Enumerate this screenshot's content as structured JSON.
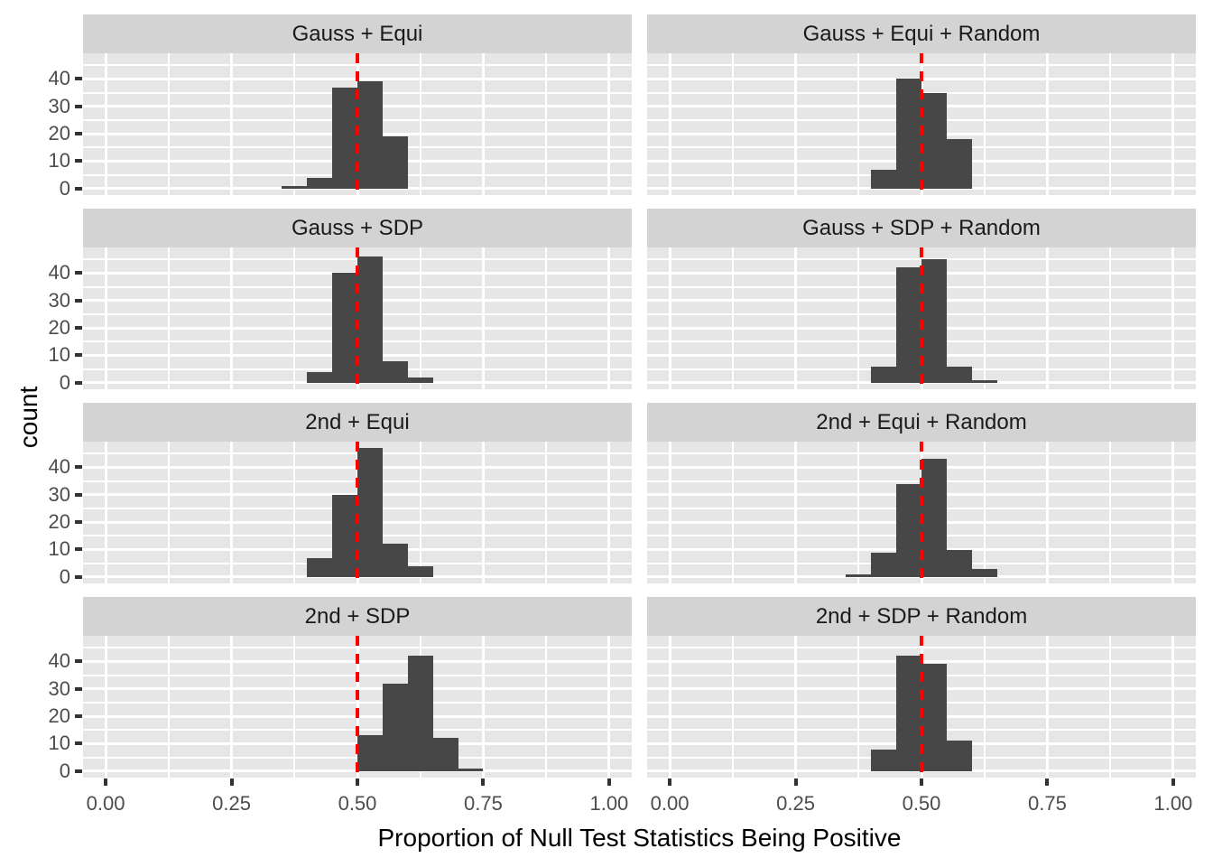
{
  "chart_data": {
    "type": "histogram",
    "facets": {
      "rows": 4,
      "cols": 2
    },
    "title": "",
    "xlabel": "Proportion of Null Test Statistics Being Positive",
    "ylabel": "count",
    "x_ticks": {
      "labels": [
        "0.00",
        "0.25",
        "0.50",
        "0.75",
        "1.00"
      ],
      "values": [
        0,
        0.25,
        0.5,
        0.75,
        1.0
      ]
    },
    "y_ticks": {
      "labels": [
        "0",
        "10",
        "20",
        "30",
        "40"
      ],
      "values": [
        0,
        10,
        20,
        30,
        40
      ]
    },
    "x_minor_ticks": [
      0.125,
      0.375,
      0.625,
      0.875
    ],
    "y_minor_ticks": [
      5,
      15,
      25,
      35,
      45
    ],
    "xlim": [
      -0.045,
      1.045
    ],
    "ylim": [
      -2.35,
      49.35
    ],
    "bin_width": 0.05,
    "reference_line_x": 0.5,
    "panels": [
      {
        "title": "Gauss + Equi",
        "bins": [
          {
            "x": 0.35,
            "count": 1
          },
          {
            "x": 0.4,
            "count": 4
          },
          {
            "x": 0.45,
            "count": 37
          },
          {
            "x": 0.5,
            "count": 39
          },
          {
            "x": 0.55,
            "count": 19
          }
        ]
      },
      {
        "title": "Gauss + Equi + Random",
        "bins": [
          {
            "x": 0.4,
            "count": 7
          },
          {
            "x": 0.45,
            "count": 40
          },
          {
            "x": 0.5,
            "count": 35
          },
          {
            "x": 0.55,
            "count": 18
          }
        ]
      },
      {
        "title": "Gauss + SDP",
        "bins": [
          {
            "x": 0.4,
            "count": 4
          },
          {
            "x": 0.45,
            "count": 40
          },
          {
            "x": 0.5,
            "count": 46
          },
          {
            "x": 0.55,
            "count": 8
          },
          {
            "x": 0.6,
            "count": 2
          }
        ]
      },
      {
        "title": "Gauss + SDP + Random",
        "bins": [
          {
            "x": 0.4,
            "count": 6
          },
          {
            "x": 0.45,
            "count": 42
          },
          {
            "x": 0.5,
            "count": 45
          },
          {
            "x": 0.55,
            "count": 6
          },
          {
            "x": 0.6,
            "count": 1
          }
        ]
      },
      {
        "title": "2nd + Equi",
        "bins": [
          {
            "x": 0.4,
            "count": 7
          },
          {
            "x": 0.45,
            "count": 30
          },
          {
            "x": 0.5,
            "count": 47
          },
          {
            "x": 0.55,
            "count": 12
          },
          {
            "x": 0.6,
            "count": 4
          }
        ]
      },
      {
        "title": "2nd + Equi + Random",
        "bins": [
          {
            "x": 0.35,
            "count": 1
          },
          {
            "x": 0.4,
            "count": 9
          },
          {
            "x": 0.45,
            "count": 34
          },
          {
            "x": 0.5,
            "count": 43
          },
          {
            "x": 0.55,
            "count": 10
          },
          {
            "x": 0.6,
            "count": 3
          }
        ]
      },
      {
        "title": "2nd + SDP",
        "bins": [
          {
            "x": 0.5,
            "count": 13
          },
          {
            "x": 0.55,
            "count": 32
          },
          {
            "x": 0.6,
            "count": 42
          },
          {
            "x": 0.65,
            "count": 12
          },
          {
            "x": 0.7,
            "count": 1
          }
        ]
      },
      {
        "title": "2nd + SDP + Random",
        "bins": [
          {
            "x": 0.4,
            "count": 8
          },
          {
            "x": 0.45,
            "count": 42
          },
          {
            "x": 0.5,
            "count": 39
          },
          {
            "x": 0.55,
            "count": 11
          }
        ]
      }
    ],
    "legend": null,
    "grid": true
  },
  "style": {
    "bar_color": "#474747",
    "panel_bg": "#e6e6e6",
    "strip_bg": "#d3d3d3",
    "grid_color": "#ffffff",
    "reference_line_color": "#ff0000",
    "tick_text_color": "#4d4d4d",
    "strip_text_color": "#1a1a1a",
    "axis_title_color": "#000000"
  }
}
